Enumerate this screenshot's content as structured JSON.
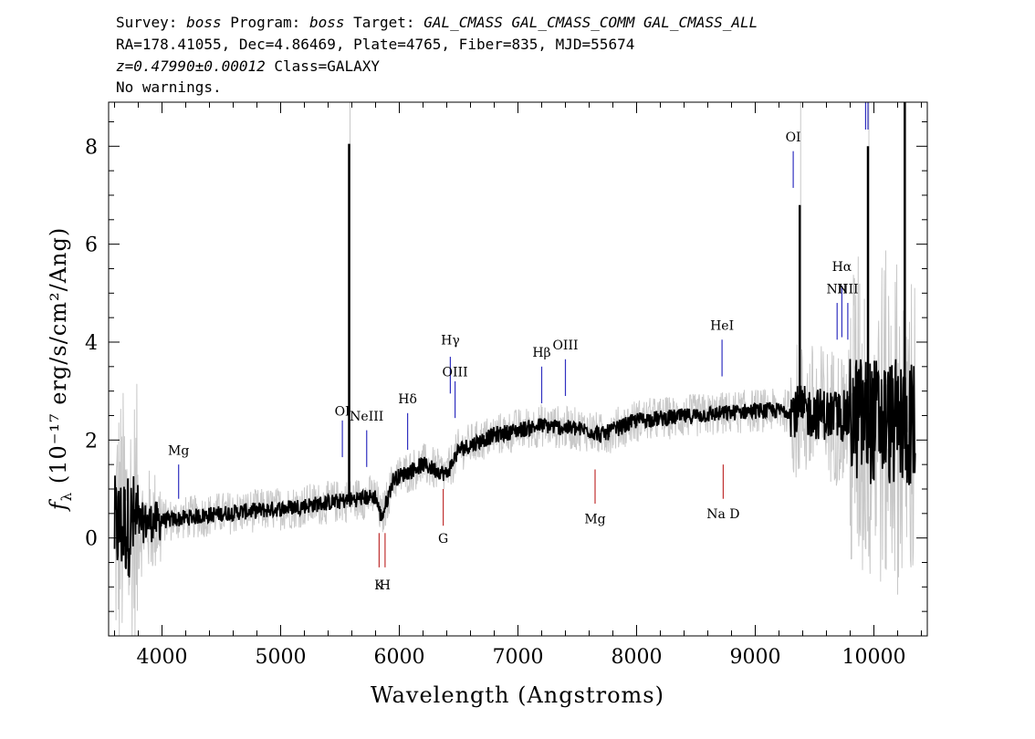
{
  "header": {
    "survey_label": "Survey:",
    "survey": "boss",
    "program_label": "Program:",
    "program": "boss",
    "target_label": "Target:",
    "target": "GAL_CMASS GAL_CMASS_COMM GAL_CMASS_ALL",
    "coords": "RA=178.41055, Dec=4.86469, Plate=4765, Fiber=835, MJD=55674",
    "redshift": "z=0.47990±0.00012",
    "class": "Class=GALAXY",
    "warnings": "No warnings."
  },
  "chart_data": {
    "type": "line",
    "xlabel": "Wavelength (Angstroms)",
    "ylabel_prefix": "f",
    "ylabel_sub": "λ",
    "ylabel_rest": " (10⁻¹⁷ erg/s/cm²/Ang)",
    "xlim": [
      3550,
      10450
    ],
    "ylim": [
      -2.0,
      8.9
    ],
    "x_ticks": [
      4000,
      5000,
      6000,
      7000,
      8000,
      9000,
      10000
    ],
    "x_tick_labels": [
      "4000",
      "5000",
      "6000",
      "7000",
      "8000",
      "9000",
      "10000"
    ],
    "y_ticks": [
      0,
      2,
      4,
      6,
      8
    ],
    "y_tick_labels": [
      "0",
      "2",
      "4",
      "6",
      "8"
    ],
    "colors": {
      "flux": "#000000",
      "noise": "#c8c8c8",
      "emission": "#3030c0",
      "absorption": "#c03030"
    },
    "continuum": [
      {
        "x": 3600,
        "y": 0.2
      },
      {
        "x": 3800,
        "y": 0.3
      },
      {
        "x": 4000,
        "y": 0.35
      },
      {
        "x": 4500,
        "y": 0.5
      },
      {
        "x": 5000,
        "y": 0.6
      },
      {
        "x": 5500,
        "y": 0.75
      },
      {
        "x": 5800,
        "y": 0.85
      },
      {
        "x": 5850,
        "y": 0.4
      },
      {
        "x": 5950,
        "y": 1.2
      },
      {
        "x": 6200,
        "y": 1.5
      },
      {
        "x": 6400,
        "y": 1.3
      },
      {
        "x": 6500,
        "y": 1.8
      },
      {
        "x": 6800,
        "y": 2.1
      },
      {
        "x": 7000,
        "y": 2.2
      },
      {
        "x": 7200,
        "y": 2.3
      },
      {
        "x": 7600,
        "y": 2.2
      },
      {
        "x": 7700,
        "y": 2.1
      },
      {
        "x": 8000,
        "y": 2.4
      },
      {
        "x": 8500,
        "y": 2.5
      },
      {
        "x": 9000,
        "y": 2.6
      },
      {
        "x": 9300,
        "y": 2.6
      },
      {
        "x": 9700,
        "y": 2.5
      },
      {
        "x": 10000,
        "y": 2.4
      },
      {
        "x": 10350,
        "y": 2.3
      }
    ],
    "flux_spikes": [
      {
        "x": 5577,
        "y": 8.05
      },
      {
        "x": 9375,
        "y": 6.8
      },
      {
        "x": 9950,
        "y": 8.0
      },
      {
        "x": 10260,
        "y": 8.9
      }
    ],
    "emission_lines": [
      {
        "label": "Mg",
        "x": 4140,
        "y_text": 1.7,
        "y_line_top": 1.5,
        "y_line_bottom": 0.8
      },
      {
        "label": "OI",
        "x": 5520,
        "y_text": 2.5,
        "y_line_top": 2.4,
        "y_line_bottom": 1.65
      },
      {
        "label": "NeIII",
        "x": 5725,
        "y_text": 2.4,
        "y_line_top": 2.2,
        "y_line_bottom": 1.45
      },
      {
        "label": "Hδ",
        "x": 6070,
        "y_text": 2.75,
        "y_line_top": 2.55,
        "y_line_bottom": 1.8
      },
      {
        "label": "Hγ",
        "x": 6430,
        "y_text": 3.95,
        "y_line_top": 3.7,
        "y_line_bottom": 2.95
      },
      {
        "label": "OIII",
        "x": 6470,
        "y_text": 3.3,
        "y_line_top": 3.2,
        "y_line_bottom": 2.45
      },
      {
        "label": "Hβ",
        "x": 7200,
        "y_text": 3.7,
        "y_line_top": 3.5,
        "y_line_bottom": 2.75
      },
      {
        "label": "OIII",
        "x": 7400,
        "y_text": 3.85,
        "y_line_top": 3.65,
        "y_line_bottom": 2.9
      },
      {
        "label": "HeI",
        "x": 8720,
        "y_text": 4.25,
        "y_line_top": 4.05,
        "y_line_bottom": 3.3
      },
      {
        "label": "OI",
        "x": 9320,
        "y_text": 8.1,
        "y_line_top": 7.9,
        "y_line_bottom": 7.15
      },
      {
        "label": "NII",
        "x": 9690,
        "y_text": 5.0,
        "y_line_top": 4.8,
        "y_line_bottom": 4.05
      },
      {
        "label": "Hα",
        "x": 9730,
        "y_text": 5.45,
        "y_line_top": 5.15,
        "y_line_bottom": 4.1
      },
      {
        "label": "NII",
        "x": 9780,
        "y_text": 5.0,
        "y_line_top": 4.8,
        "y_line_bottom": 4.05
      }
    ],
    "absorption_lines": [
      {
        "label": "K",
        "x": 5830,
        "y_line_top": 0.1,
        "y_line_bottom": -0.6,
        "y_text": -1.05
      },
      {
        "label": "H",
        "x": 5880,
        "y_line_top": 0.1,
        "y_line_bottom": -0.6,
        "y_text": -1.05
      },
      {
        "label": "G",
        "x": 6370,
        "y_line_top": 1.0,
        "y_line_bottom": 0.25,
        "y_text": -0.1
      },
      {
        "label": "Mg",
        "x": 7650,
        "y_line_top": 1.4,
        "y_line_bottom": 0.7,
        "y_text": 0.3
      },
      {
        "label": "Na D",
        "x": 8730,
        "y_line_top": 1.5,
        "y_line_bottom": 0.8,
        "y_text": 0.4
      }
    ],
    "offscale_lines_top": [
      9930,
      9950
    ]
  }
}
